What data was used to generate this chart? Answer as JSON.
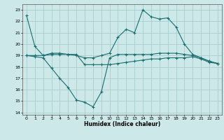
{
  "title": "",
  "xlabel": "Humidex (Indice chaleur)",
  "bg_color": "#cce8e8",
  "grid_color": "#aacccc",
  "line_color": "#1a6e6e",
  "xlim": [
    -0.5,
    23.5
  ],
  "ylim": [
    13.8,
    23.5
  ],
  "yticks": [
    14,
    15,
    16,
    17,
    18,
    19,
    20,
    21,
    22,
    23
  ],
  "xticks": [
    0,
    1,
    2,
    3,
    4,
    5,
    6,
    7,
    8,
    9,
    10,
    11,
    12,
    13,
    14,
    15,
    16,
    17,
    18,
    19,
    20,
    21,
    22,
    23
  ],
  "line1_x": [
    0,
    1,
    2,
    3,
    4,
    5,
    6,
    7,
    8,
    9,
    10,
    11,
    12,
    13,
    14,
    15,
    16,
    17,
    18,
    19,
    20,
    21,
    22,
    23
  ],
  "line1_y": [
    22.5,
    19.8,
    19.0,
    19.2,
    19.2,
    19.1,
    19.0,
    18.8,
    18.8,
    19.0,
    19.2,
    20.6,
    21.3,
    21.0,
    23.0,
    22.4,
    22.2,
    22.3,
    21.5,
    20.0,
    19.1,
    18.8,
    18.5,
    18.3
  ],
  "line2_x": [
    0,
    1,
    2,
    3,
    4,
    5,
    6,
    7,
    8,
    9,
    10,
    11,
    12,
    13,
    14,
    15,
    16,
    17,
    18,
    19,
    20,
    21,
    22,
    23
  ],
  "line2_y": [
    19.0,
    19.0,
    19.0,
    19.1,
    19.1,
    19.1,
    19.1,
    18.2,
    18.2,
    18.2,
    18.2,
    18.3,
    18.4,
    18.5,
    18.6,
    18.7,
    18.7,
    18.8,
    18.8,
    18.8,
    18.9,
    18.7,
    18.4,
    18.3
  ],
  "line3_x": [
    0,
    1,
    2,
    3,
    4,
    5,
    6,
    7,
    8,
    9,
    10,
    11,
    12,
    13,
    14,
    15,
    16,
    17,
    18,
    19,
    20,
    21,
    22,
    23
  ],
  "line3_y": [
    19.0,
    18.9,
    18.8,
    17.9,
    17.0,
    16.2,
    15.1,
    14.9,
    14.5,
    15.8,
    18.8,
    19.1,
    19.1,
    19.1,
    19.1,
    19.1,
    19.2,
    19.2,
    19.2,
    19.1,
    19.0,
    18.8,
    18.5,
    18.3
  ]
}
